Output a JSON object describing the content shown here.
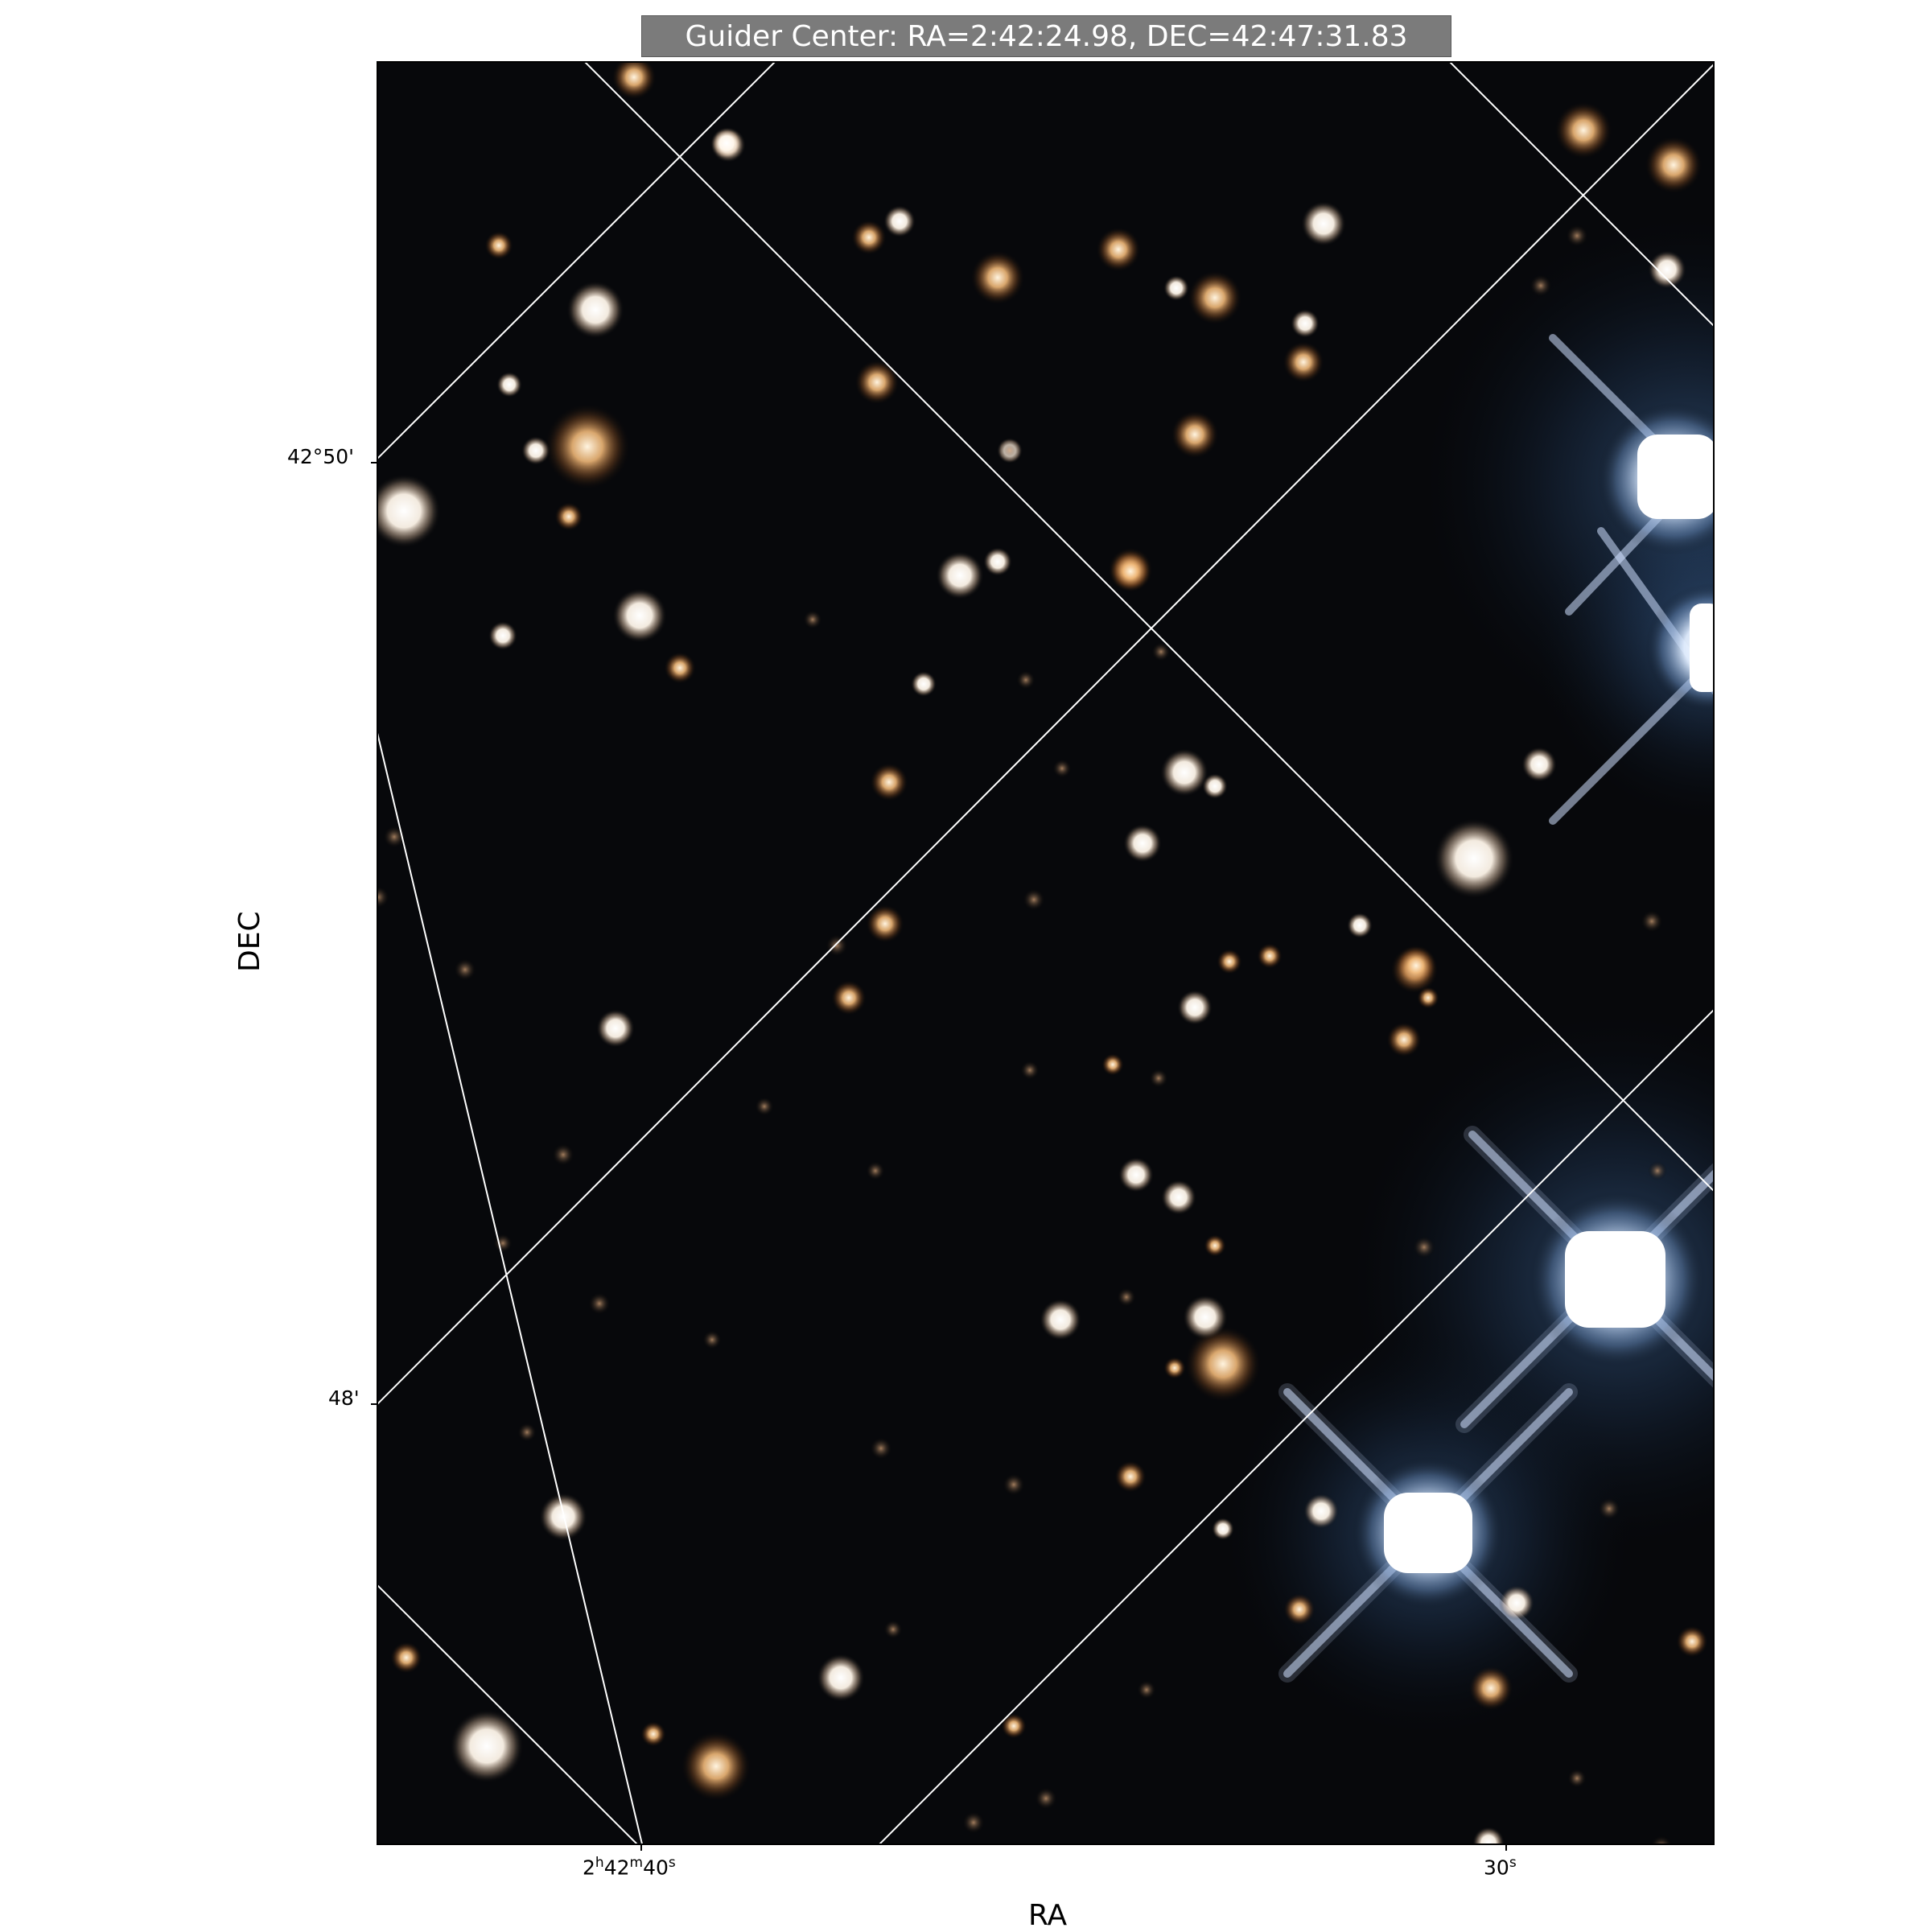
{
  "title": "Guider Center: RA=2:42:24.98, DEC=42:47:31.83",
  "axes": {
    "xlabel": "RA",
    "ylabel": "DEC",
    "x_ticks": [
      {
        "h": "2",
        "m": "42",
        "s": "40"
      },
      {
        "h": "",
        "m": "",
        "s": "30"
      }
    ],
    "y_ticks": [
      "42°50'",
      "48'"
    ]
  },
  "image": {
    "content": "star field",
    "background": "#07080b",
    "grid_color": "#ffffff",
    "grid": true
  }
}
